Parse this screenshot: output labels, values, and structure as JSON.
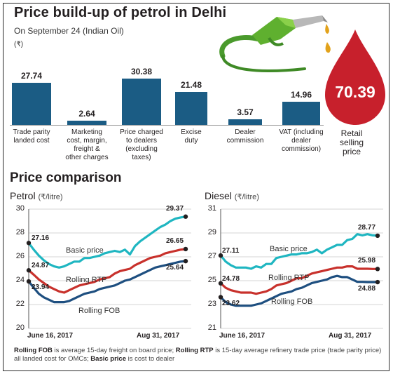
{
  "title": "Price build-up of petrol in Delhi",
  "subtitle": "On September 24 (Indian Oil)",
  "unit": "(₹)",
  "colors": {
    "bar": "#1b5c84",
    "drop": "#c7202c",
    "basic": "#1fb6c1",
    "rtp": "#c8312c",
    "fob": "#1e4f80",
    "grid": "#c9c9c9"
  },
  "icons": [
    "fuel-nozzle-icon",
    "oil-drop-icon"
  ],
  "buildup": {
    "categories": [
      "Trade parity landed cost",
      "Marketing cost, margin, freight & other charges",
      "Price charged to dealers (excluding taxes)",
      "Excise duty",
      "Dealer commission",
      "VAT (including dealer commission)"
    ],
    "category_lines": [
      [
        "Trade parity",
        "landed cost"
      ],
      [
        "Marketing",
        "cost, margin,",
        "freight &",
        "other charges"
      ],
      [
        "Price charged",
        "to dealers",
        "(excluding",
        "taxes)"
      ],
      [
        "Excise",
        "duty"
      ],
      [
        "Dealer",
        "commission"
      ],
      [
        "VAT (including",
        "dealer",
        "commission)"
      ]
    ],
    "values": [
      27.74,
      2.64,
      30.38,
      21.48,
      3.57,
      14.96
    ],
    "value_labels": [
      "27.74",
      "2.64",
      "30.38",
      "21.48",
      "3.57",
      "14.96"
    ],
    "retail": {
      "value": 70.39,
      "label": "70.39",
      "lines": [
        "Retail",
        "selling",
        "price"
      ]
    }
  },
  "comparison_title": "Price comparison",
  "chart_data": [
    {
      "type": "bar",
      "title": "Price build-up of petrol in Delhi",
      "categories": [
        "Trade parity landed cost",
        "Marketing cost, margin, freight & other charges",
        "Price charged to dealers (excluding taxes)",
        "Excise duty",
        "Dealer commission",
        "VAT (including dealer commission)",
        "Retail selling price"
      ],
      "values": [
        27.74,
        2.64,
        30.38,
        21.48,
        3.57,
        14.96,
        70.39
      ]
    },
    {
      "type": "line",
      "title": "Petrol",
      "unit": "(₹/litre)",
      "ylim": [
        20,
        30
      ],
      "yticks": [
        "30",
        "28",
        "26",
        "24",
        "22",
        "20"
      ],
      "x_labels": [
        "June 16, 2017",
        "Aug 31, 2017"
      ],
      "series": [
        {
          "name": "Basic price",
          "values": [
            27.16,
            26.6,
            26.1,
            25.7,
            25.4,
            25.2,
            25.1,
            25.2,
            25.4,
            25.6,
            25.6,
            25.9,
            25.9,
            26.0,
            26.1,
            26.3,
            26.4,
            26.5,
            26.4,
            26.6,
            26.2,
            26.9,
            27.3,
            27.6,
            27.9,
            28.2,
            28.5,
            28.7,
            29.0,
            29.2,
            29.3,
            29.37
          ]
        },
        {
          "name": "Rolling RTP",
          "values": [
            24.87,
            24.5,
            24.1,
            23.8,
            23.5,
            23.3,
            23.1,
            23.0,
            23.2,
            23.4,
            23.6,
            23.7,
            23.8,
            23.9,
            24.1,
            24.2,
            24.3,
            24.6,
            24.8,
            24.9,
            25.0,
            25.3,
            25.5,
            25.7,
            25.9,
            26.0,
            26.1,
            26.3,
            26.4,
            26.5,
            26.6,
            26.65
          ]
        },
        {
          "name": "Rolling FOB",
          "values": [
            23.94,
            23.4,
            22.9,
            22.6,
            22.4,
            22.2,
            22.2,
            22.2,
            22.3,
            22.5,
            22.7,
            22.9,
            23.0,
            23.1,
            23.3,
            23.4,
            23.5,
            23.6,
            23.8,
            24.0,
            24.1,
            24.3,
            24.5,
            24.7,
            24.9,
            25.1,
            25.2,
            25.3,
            25.4,
            25.5,
            25.6,
            25.64
          ]
        }
      ],
      "start_labels": [
        "27.16",
        "24.87",
        "23.94"
      ],
      "end_labels": [
        "29.37",
        "26.65",
        "25.64"
      ]
    },
    {
      "type": "line",
      "title": "Diesel",
      "unit": "(₹/litre)",
      "ylim": [
        21,
        31
      ],
      "yticks": [
        "31",
        "29",
        "27",
        "25",
        "23",
        "21"
      ],
      "x_labels": [
        "June 16, 2017",
        "Aug 31, 2017"
      ],
      "series": [
        {
          "name": "Basic price",
          "values": [
            27.11,
            26.6,
            26.3,
            26.1,
            26.1,
            26.1,
            26.0,
            26.2,
            26.1,
            26.4,
            26.4,
            26.9,
            27.0,
            27.1,
            27.2,
            27.2,
            27.3,
            27.3,
            27.4,
            27.6,
            27.3,
            27.6,
            27.8,
            28.0,
            28.0,
            28.4,
            28.5,
            28.9,
            28.8,
            28.9,
            28.8,
            28.77
          ]
        },
        {
          "name": "Rolling RTP",
          "values": [
            24.78,
            24.4,
            24.2,
            24.1,
            24.0,
            24.0,
            24.0,
            23.9,
            24.0,
            24.1,
            24.3,
            24.6,
            24.7,
            24.8,
            25.0,
            25.2,
            25.2,
            25.4,
            25.6,
            25.7,
            25.8,
            25.9,
            26.0,
            26.1,
            26.1,
            26.2,
            26.2,
            26.0,
            26.0,
            26.0,
            25.98,
            25.98
          ]
        },
        {
          "name": "Rolling FOB",
          "values": [
            23.62,
            23.2,
            23.0,
            22.9,
            22.9,
            22.9,
            22.9,
            23.0,
            23.1,
            23.3,
            23.5,
            23.7,
            23.9,
            24.0,
            24.1,
            24.3,
            24.4,
            24.6,
            24.8,
            24.9,
            25.0,
            25.1,
            25.3,
            25.4,
            25.3,
            25.3,
            25.1,
            24.9,
            24.9,
            24.88,
            24.88,
            24.88
          ]
        }
      ],
      "start_labels": [
        "27.11",
        "24.78",
        "23.62"
      ],
      "end_labels": [
        "28.77",
        "25.98",
        "24.88"
      ]
    }
  ],
  "footnote": {
    "t1": "Rolling FOB",
    "t2": " is average 15-day freight on board price; ",
    "t3": "Rolling RTP",
    "t4": " is 15-day average refinery trade price (trade parity price) all landed cost for OMCs; ",
    "t5": "Basic price",
    "t6": " is cost to dealer"
  }
}
